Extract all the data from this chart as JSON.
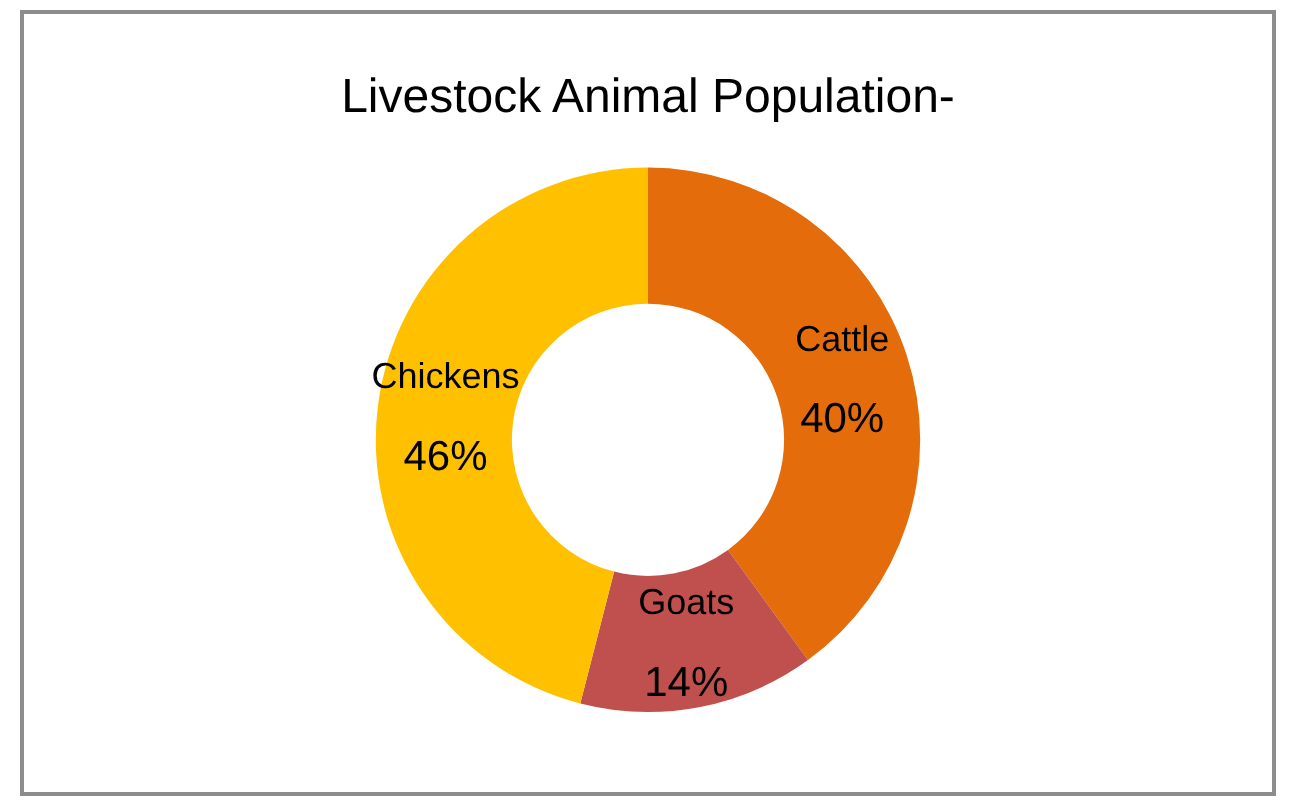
{
  "chart_data": {
    "type": "donut",
    "title": "Livestock Animal Population-",
    "categories": [
      "Cattle",
      "Goats",
      "Chickens"
    ],
    "values": [
      40,
      14,
      46
    ],
    "colors": [
      "#e46c0a",
      "#c0504d",
      "#ffc000"
    ],
    "value_labels": [
      "40%",
      "14%",
      "46%"
    ],
    "legend": false
  }
}
